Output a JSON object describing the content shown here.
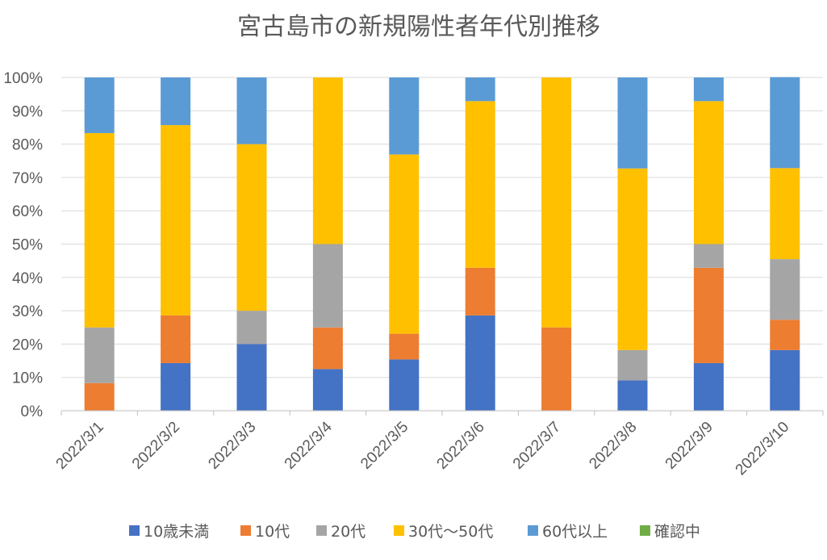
{
  "chart_data": {
    "type": "bar",
    "stacked": true,
    "normalized": true,
    "title": "宮古島市の新規陽性者年代別推移",
    "xlabel": "",
    "ylabel": "",
    "ylim": [
      0,
      100
    ],
    "y_ticks": [
      "0%",
      "10%",
      "20%",
      "30%",
      "40%",
      "50%",
      "60%",
      "70%",
      "80%",
      "90%",
      "100%"
    ],
    "categories": [
      "2022/3/1",
      "2022/3/2",
      "2022/3/3",
      "2022/3/4",
      "2022/3/5",
      "2022/3/6",
      "2022/3/7",
      "2022/3/8",
      "2022/3/9",
      "2022/3/10"
    ],
    "legend_position": "bottom",
    "series": [
      {
        "name": "10歳未満",
        "color": "#4472c4",
        "values": [
          0,
          14.3,
          20,
          12.5,
          15.4,
          28.6,
          0,
          9.1,
          14.3,
          18.2
        ]
      },
      {
        "name": "10代",
        "color": "#ed7d31",
        "values": [
          8.3,
          14.3,
          0,
          12.5,
          7.7,
          14.3,
          25,
          0,
          28.6,
          9.1
        ]
      },
      {
        "name": "20代",
        "color": "#a5a5a5",
        "values": [
          16.7,
          0,
          10,
          25,
          0,
          0,
          0,
          9.1,
          7.1,
          18.2
        ]
      },
      {
        "name": "30代～50代",
        "color": "#ffc000",
        "values": [
          58.3,
          57.1,
          50,
          50,
          53.8,
          50,
          75,
          54.5,
          42.9,
          27.3
        ]
      },
      {
        "name": "60代以上",
        "color": "#5b9bd5",
        "values": [
          16.7,
          14.3,
          20,
          0,
          23.1,
          7.1,
          0,
          27.3,
          7.1,
          27.3
        ]
      },
      {
        "name": "確認中",
        "color": "#70ad47",
        "values": [
          0,
          0,
          0,
          0,
          0,
          0,
          0,
          0,
          0,
          0
        ]
      }
    ]
  }
}
